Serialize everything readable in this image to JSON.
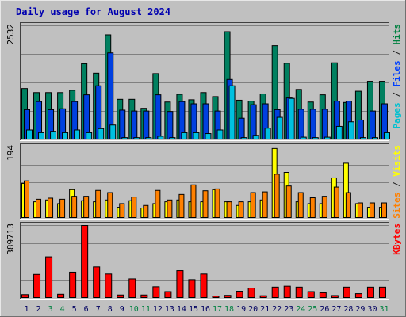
{
  "chart_data": {
    "type": "bar",
    "title": "Daily usage for August 2024",
    "categories": [
      "1",
      "2",
      "3",
      "4",
      "5",
      "6",
      "7",
      "8",
      "9",
      "10",
      "11",
      "12",
      "13",
      "14",
      "15",
      "16",
      "17",
      "18",
      "19",
      "20",
      "21",
      "22",
      "23",
      "24",
      "25",
      "26",
      "27",
      "28",
      "29",
      "30",
      "31"
    ],
    "weekend_days": [
      "3",
      "4",
      "10",
      "11",
      "17",
      "18",
      "24",
      "25",
      "31"
    ],
    "panels": [
      {
        "id": "top",
        "ylim": [
          0,
          2532
        ],
        "max_label": "2532",
        "legend": [
          {
            "text": "Pages",
            "color": "#00c0d0"
          },
          {
            "text": " / ",
            "color": "#202020"
          },
          {
            "text": "Files",
            "color": "#0040ff"
          },
          {
            "text": " / ",
            "color": "#202020"
          },
          {
            "text": "Hits",
            "color": "#008040"
          }
        ],
        "series": [
          {
            "name": "Hits",
            "color": "#008060",
            "values": [
              1140,
              1050,
              1050,
              1050,
              1100,
              1690,
              1480,
              2330,
              900,
              900,
              700,
              1470,
              840,
              1010,
              890,
              1050,
              960,
              2400,
              880,
              860,
              1020,
              2090,
              1700,
              1120,
              840,
              1000,
              1710,
              830,
              1080,
              1300,
              1300
            ]
          },
          {
            "name": "Files",
            "color": "#0040e0",
            "values": [
              670,
              850,
              670,
              690,
              850,
              1000,
              1200,
              1930,
              660,
              640,
              640,
              1000,
              630,
              850,
              800,
              800,
              640,
              1340,
              480,
              780,
              800,
              670,
              930,
              680,
              680,
              680,
              860,
              860,
              440,
              640,
              800
            ]
          },
          {
            "name": "Pages",
            "color": "#00c0e0",
            "values": [
              220,
              160,
              190,
              160,
              220,
              160,
              250,
              330,
              50,
              50,
              50,
              80,
              50,
              160,
              160,
              140,
              220,
              1200,
              50,
              100,
              260,
              500,
              920,
              60,
              50,
              60,
              300,
              400,
              50,
              50,
              160
            ]
          }
        ]
      },
      {
        "id": "middle",
        "ylim": [
          0,
          194
        ],
        "max_label": "194",
        "legend": [
          {
            "text": "Sites",
            "color": "#ff8000"
          },
          {
            "text": " / ",
            "color": "#202020"
          },
          {
            "text": "Visits",
            "color": "#ffff00"
          }
        ],
        "series": [
          {
            "name": "Visits",
            "color": "#ffff00",
            "values": [
              95,
              45,
              50,
              40,
              78,
              48,
              45,
              50,
              30,
              48,
              28,
              40,
              45,
              50,
              45,
              45,
              78,
              45,
              35,
              45,
              50,
              190,
              125,
              45,
              40,
              40,
              110,
              150,
              40,
              30,
              30
            ]
          },
          {
            "name": "Sites",
            "color": "#ff8000",
            "values": [
              102,
              52,
              55,
              52,
              60,
              60,
              76,
              70,
              40,
              58,
              35,
              76,
              50,
              65,
              91,
              75,
              80,
              45,
              45,
              70,
              72,
              120,
              88,
              70,
              56,
              60,
              85,
              70,
              42,
              42,
              42
            ]
          }
        ]
      },
      {
        "id": "bottom",
        "ylim": [
          0,
          389713
        ],
        "max_label": "389713",
        "legend": [
          {
            "text": "KBytes",
            "color": "#ff0000"
          }
        ],
        "series": [
          {
            "name": "KBytes",
            "color": "#ff0000",
            "values": [
              20000,
              128000,
              222000,
              22000,
              140000,
              389713,
              168000,
              130000,
              18000,
              104000,
              18000,
              62000,
              36000,
              148000,
              100000,
              130000,
              12000,
              16000,
              38000,
              55000,
              14000,
              60000,
              65000,
              60000,
              36000,
              30000,
              15000,
              60000,
              25000,
              60000,
              60000
            ]
          }
        ]
      }
    ],
    "colors": {
      "background": "#c0c0c0",
      "title": "#0000b0",
      "day_label": "#000060",
      "weekend_label": "#008040",
      "grid": "#808080"
    }
  }
}
